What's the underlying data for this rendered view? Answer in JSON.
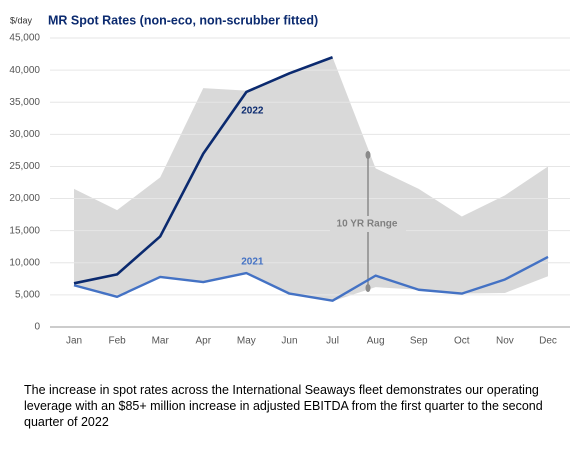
{
  "chart_data": {
    "type": "line",
    "title": "MR Spot Rates (non-eco, non-scrubber fitted)",
    "y_unit": "$/day",
    "categories": [
      "Jan",
      "Feb",
      "Mar",
      "Apr",
      "May",
      "Jun",
      "Jul",
      "Aug",
      "Sep",
      "Oct",
      "Nov",
      "Dec"
    ],
    "series": [
      {
        "name": "2022",
        "color": "#0b2a6f",
        "values": [
          6800,
          8200,
          14100,
          27000,
          36600,
          39500,
          42000,
          null,
          null,
          null,
          null,
          null
        ]
      },
      {
        "name": "2021",
        "color": "#4472c4",
        "values": [
          6500,
          4700,
          7800,
          7000,
          8400,
          5200,
          4100,
          8000,
          5800,
          5200,
          7400,
          10900
        ]
      }
    ],
    "range": {
      "name": "10 YR Range",
      "color": "#d9d9d9",
      "low": [
        6300,
        4600,
        7700,
        6900,
        8300,
        5100,
        4000,
        6200,
        5800,
        5200,
        5300,
        7900
      ],
      "high": [
        21500,
        18200,
        23300,
        37200,
        36800,
        39700,
        42000,
        24700,
        21500,
        17200,
        20500,
        25000
      ]
    },
    "ylim": [
      0,
      45000
    ],
    "yticks": [
      0,
      {
        "value": 5000,
        "label": "5,000"
      },
      {
        "value": 10000,
        "label": "10,000"
      },
      {
        "value": 15000,
        "label": "15,000"
      },
      {
        "value": 20000,
        "label": "20,000"
      },
      {
        "value": 25000,
        "label": "25,000"
      },
      {
        "value": 30000,
        "label": "30,000"
      },
      {
        "value": 35000,
        "label": "35,000"
      },
      {
        "value": 40000,
        "label": "40,000"
      },
      {
        "value": 45000,
        "label": "45,000"
      }
    ],
    "grid": true
  },
  "caption": "The increase in spot rates across the International Seaways fleet demonstrates our operating leverage with an $85+ million increase in adjusted EBITDA from the first quarter to the second quarter of 2022"
}
